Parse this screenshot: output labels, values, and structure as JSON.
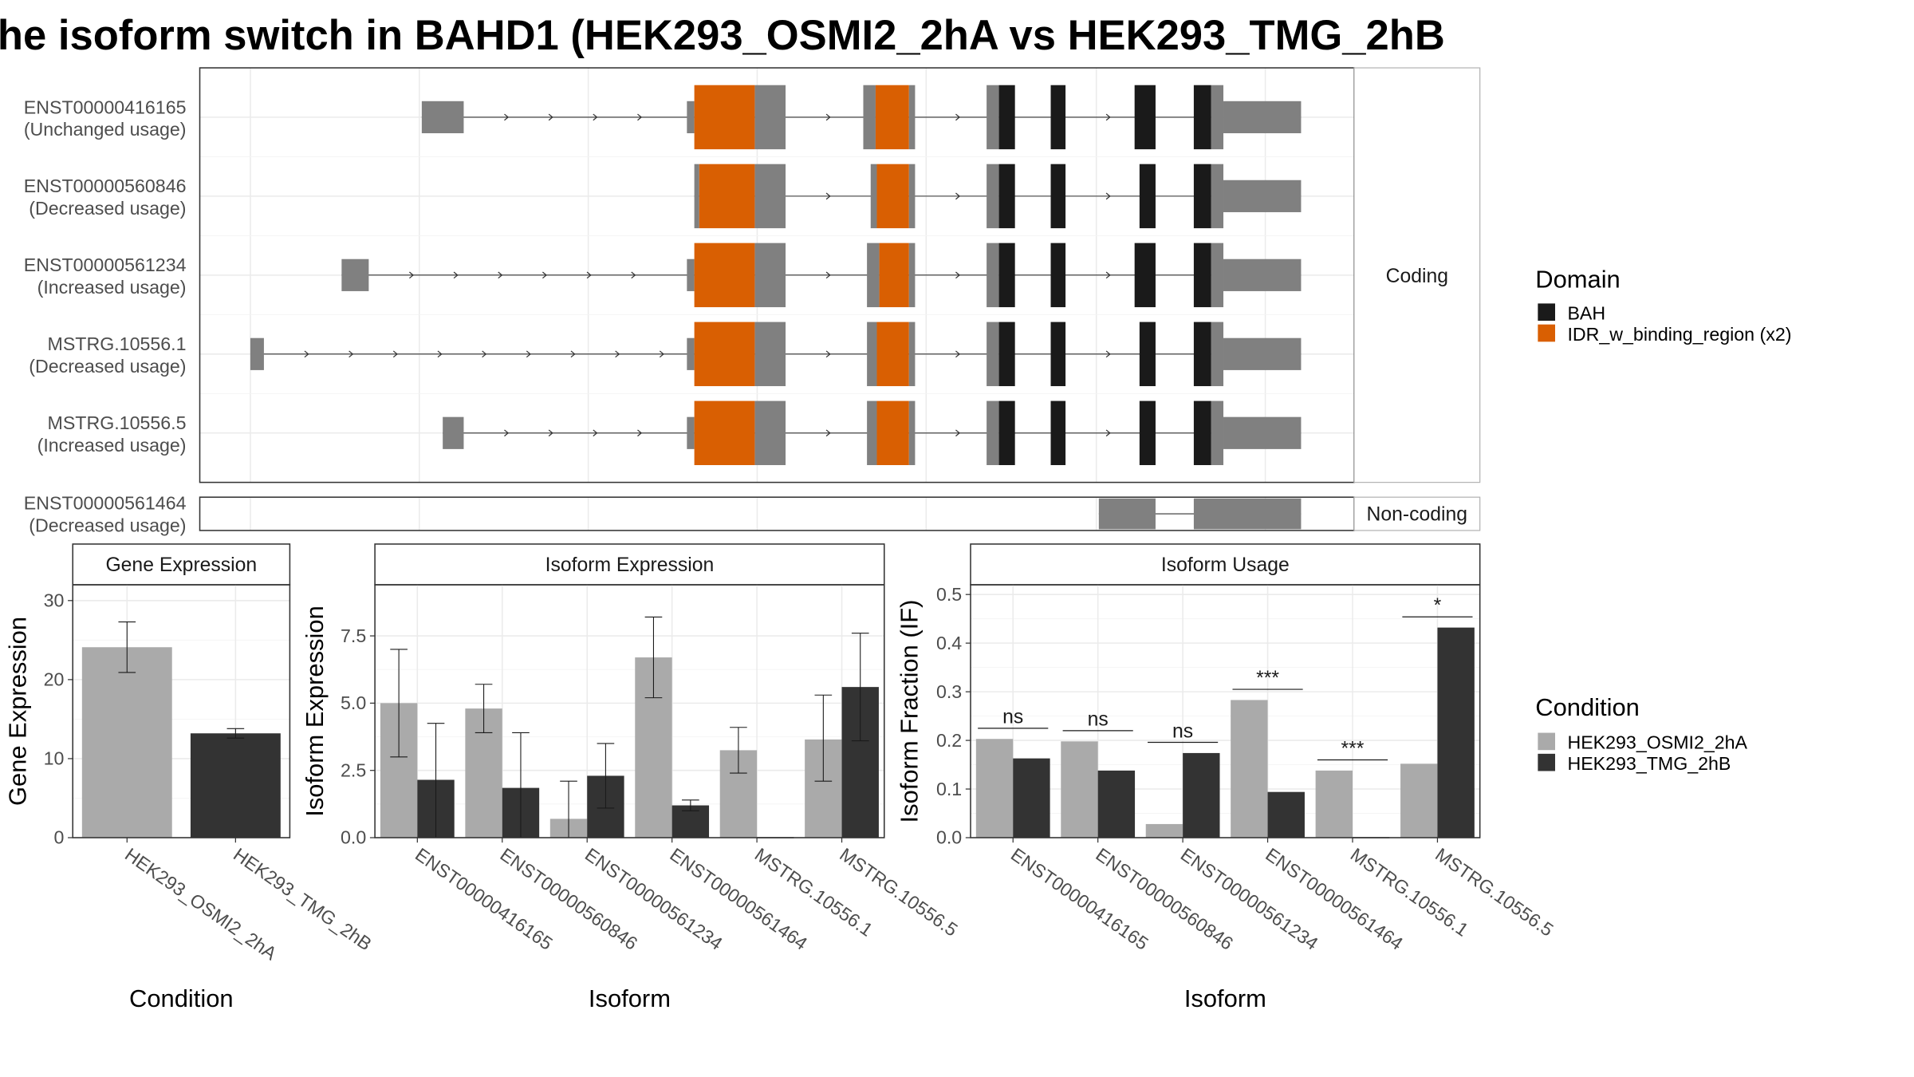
{
  "title": "he isoform switch in BAHD1 (HEK293_OSMI2_2hA vs HEK293_TMG_2hB",
  "colors": {
    "utr": "#808080",
    "bah": "#1a1a1a",
    "idr": "#d95f02",
    "cond_a": "#aaaaaa",
    "cond_b": "#333333",
    "panel_border": "#333333",
    "grid": "#ebebeb"
  },
  "structure": {
    "coding_label": "Coding",
    "noncoding_label": "Non-coding",
    "coding": [
      {
        "id": "ENST00000416165",
        "usage": "(Unchanged usage)",
        "utr": [
          [
            342,
            376
          ],
          [
            557,
            563
          ],
          [
            612,
            637
          ],
          [
            700,
            710
          ],
          [
            737,
            742
          ],
          [
            800,
            810
          ],
          [
            982,
            992
          ],
          [
            992,
            1055
          ]
        ],
        "idr": [
          [
            563,
            612
          ],
          [
            710,
            737
          ]
        ],
        "bah": [
          [
            810,
            823
          ],
          [
            852,
            864
          ],
          [
            920,
            937
          ],
          [
            968,
            982
          ]
        ],
        "tall": [
          [
            563,
            637
          ],
          [
            700,
            742
          ],
          [
            800,
            823
          ],
          [
            852,
            864
          ],
          [
            920,
            937
          ],
          [
            968,
            992
          ]
        ]
      },
      {
        "id": "ENST00000560846",
        "usage": "(Decreased usage)",
        "utr": [
          [
            563,
            567
          ],
          [
            612,
            637
          ],
          [
            706,
            711
          ],
          [
            737,
            742
          ],
          [
            800,
            810
          ],
          [
            982,
            992
          ],
          [
            992,
            1055
          ]
        ],
        "idr": [
          [
            567,
            612
          ],
          [
            711,
            737
          ]
        ],
        "bah": [
          [
            810,
            823
          ],
          [
            852,
            864
          ],
          [
            924,
            937
          ],
          [
            968,
            982
          ]
        ],
        "tall": [
          [
            563,
            637
          ],
          [
            706,
            742
          ],
          [
            800,
            823
          ],
          [
            852,
            864
          ],
          [
            924,
            937
          ],
          [
            968,
            992
          ]
        ]
      },
      {
        "id": "ENST00000561234",
        "usage": "(Increased usage)",
        "utr": [
          [
            277,
            299
          ],
          [
            557,
            563
          ],
          [
            612,
            637
          ],
          [
            703,
            713
          ],
          [
            737,
            742
          ],
          [
            800,
            810
          ],
          [
            982,
            992
          ],
          [
            992,
            1055
          ]
        ],
        "idr": [
          [
            563,
            612
          ],
          [
            713,
            737
          ]
        ],
        "bah": [
          [
            810,
            823
          ],
          [
            852,
            864
          ],
          [
            920,
            937
          ],
          [
            968,
            982
          ]
        ],
        "tall": [
          [
            563,
            637
          ],
          [
            703,
            742
          ],
          [
            800,
            823
          ],
          [
            852,
            864
          ],
          [
            920,
            937
          ],
          [
            968,
            992
          ]
        ]
      },
      {
        "id": "MSTRG.10556.1",
        "usage": "(Decreased usage)",
        "utr": [
          [
            203,
            214
          ],
          [
            557,
            563
          ],
          [
            612,
            637
          ],
          [
            703,
            711
          ],
          [
            737,
            742
          ],
          [
            800,
            810
          ],
          [
            982,
            992
          ],
          [
            992,
            1055
          ]
        ],
        "idr": [
          [
            563,
            612
          ],
          [
            711,
            737
          ]
        ],
        "bah": [
          [
            810,
            823
          ],
          [
            852,
            864
          ],
          [
            924,
            937
          ],
          [
            968,
            982
          ]
        ],
        "tall": [
          [
            563,
            637
          ],
          [
            703,
            742
          ],
          [
            800,
            823
          ],
          [
            852,
            864
          ],
          [
            924,
            937
          ],
          [
            968,
            992
          ]
        ]
      },
      {
        "id": "MSTRG.10556.5",
        "usage": "(Increased usage)",
        "utr": [
          [
            359,
            376
          ],
          [
            557,
            563
          ],
          [
            612,
            637
          ],
          [
            703,
            711
          ],
          [
            737,
            742
          ],
          [
            800,
            810
          ],
          [
            982,
            992
          ],
          [
            992,
            1055
          ]
        ],
        "idr": [
          [
            563,
            612
          ],
          [
            711,
            737
          ]
        ],
        "bah": [
          [
            810,
            823
          ],
          [
            852,
            864
          ],
          [
            924,
            937
          ],
          [
            968,
            982
          ]
        ],
        "tall": [
          [
            563,
            637
          ],
          [
            703,
            742
          ],
          [
            800,
            823
          ],
          [
            852,
            864
          ],
          [
            924,
            937
          ],
          [
            968,
            992
          ]
        ]
      }
    ],
    "noncoding": [
      {
        "id": "ENST00000561464",
        "usage": "(Decreased usage)",
        "utr": [
          [
            891,
            937
          ],
          [
            968,
            1055
          ]
        ],
        "idr": [],
        "bah": [],
        "tall": []
      }
    ],
    "gridlines": [
      203,
      340,
      477,
      614,
      751,
      889,
      1026
    ]
  },
  "legend_domain": {
    "title": "Domain",
    "items": [
      {
        "label": "BAH",
        "color": "#1a1a1a"
      },
      {
        "label": "IDR_w_binding_region (x2)",
        "color": "#d95f02"
      }
    ]
  },
  "legend_condition": {
    "title": "Condition",
    "items": [
      {
        "label": "HEK293_OSMI2_2hA",
        "color": "#aaaaaa"
      },
      {
        "label": "HEK293_TMG_2hB",
        "color": "#333333"
      }
    ]
  },
  "chart_data": [
    {
      "type": "bar",
      "title": "Gene Expression",
      "xlabel": "Condition",
      "ylabel": "Gene Expression",
      "ylim": [
        0,
        32
      ],
      "yticks": [
        0,
        10,
        20,
        30
      ],
      "ytick_labels": [
        "0",
        "10",
        "20",
        "30"
      ],
      "categories": [
        "HEK293_OSMI2_2hA",
        "HEK293_TMG_2hB"
      ],
      "series": [
        {
          "values": [
            24.1,
            13.2
          ],
          "errors": [
            [
              20.9,
              27.3
            ],
            [
              12.6,
              13.8
            ]
          ]
        }
      ]
    },
    {
      "type": "bar",
      "title": "Isoform Expression",
      "xlabel": "Isoform",
      "ylabel": "Isoform Expression",
      "ylim": [
        0,
        9.4
      ],
      "yticks": [
        0,
        2.5,
        5,
        7.5
      ],
      "ytick_labels": [
        "0.0",
        "2.5",
        "5.0",
        "7.5"
      ],
      "categories": [
        "ENST00000416165",
        "ENST00000560846",
        "ENST00000561234",
        "ENST00000561464",
        "MSTRG.10556.1",
        "MSTRG.10556.5"
      ],
      "series": [
        {
          "name": "HEK293_OSMI2_2hA",
          "values": [
            5.0,
            4.8,
            0.7,
            6.7,
            3.25,
            3.65
          ],
          "errors": [
            [
              3.0,
              7.0
            ],
            [
              3.9,
              5.7
            ],
            [
              0.0,
              2.1
            ],
            [
              5.2,
              8.2
            ],
            [
              2.4,
              4.1
            ],
            [
              2.1,
              5.3
            ]
          ]
        },
        {
          "name": "HEK293_TMG_2hB",
          "values": [
            2.15,
            1.85,
            2.3,
            1.2,
            0.0,
            5.6
          ],
          "errors": [
            [
              0.0,
              4.25
            ],
            [
              0.0,
              3.9
            ],
            [
              1.1,
              3.5
            ],
            [
              1.0,
              1.4
            ],
            [
              0.0,
              0.0
            ],
            [
              3.6,
              7.6
            ]
          ]
        }
      ]
    },
    {
      "type": "bar",
      "title": "Isoform Usage",
      "xlabel": "Isoform",
      "ylabel": "Isoform Fraction (IF)",
      "ylim": [
        0,
        0.52
      ],
      "yticks": [
        0,
        0.1,
        0.2,
        0.3,
        0.4,
        0.5
      ],
      "ytick_labels": [
        "0.0",
        "0.1",
        "0.2",
        "0.3",
        "0.4",
        "0.5"
      ],
      "categories": [
        "ENST00000416165",
        "ENST00000560846",
        "ENST00000561234",
        "ENST00000561464",
        "MSTRG.10556.1",
        "MSTRG.10556.5"
      ],
      "series": [
        {
          "name": "HEK293_OSMI2_2hA",
          "values": [
            0.203,
            0.198,
            0.028,
            0.283,
            0.138,
            0.152
          ]
        },
        {
          "name": "HEK293_TMG_2hB",
          "values": [
            0.163,
            0.138,
            0.174,
            0.094,
            0.0,
            0.432
          ]
        }
      ],
      "annotations": [
        {
          "category": "ENST00000416165",
          "text": "ns",
          "y": 0.225
        },
        {
          "category": "ENST00000560846",
          "text": "ns",
          "y": 0.22
        },
        {
          "category": "ENST00000561234",
          "text": "ns",
          "y": 0.196
        },
        {
          "category": "ENST00000561464",
          "text": "***",
          "y": 0.305
        },
        {
          "category": "MSTRG.10556.1",
          "text": "***",
          "y": 0.16
        },
        {
          "category": "MSTRG.10556.5",
          "text": "*",
          "y": 0.454
        }
      ]
    }
  ]
}
